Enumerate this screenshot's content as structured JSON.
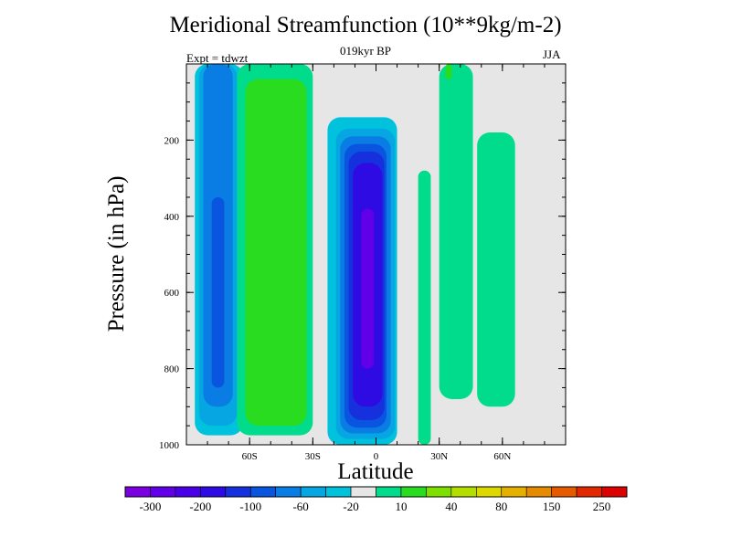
{
  "chart_data": {
    "type": "heatmap",
    "title": "Meridional Streamfunction (10**9kg/m-2)",
    "subtitle": "019kyr BP",
    "annotation_left": "Expt = tdwzt",
    "annotation_right": "JJA",
    "xlabel": "Latitude",
    "ylabel": "Pressure (in hPa)",
    "xlim": [
      -90,
      90
    ],
    "ylim": [
      1000,
      0
    ],
    "x_ticks": [
      {
        "value": -60,
        "label": "60S"
      },
      {
        "value": -30,
        "label": "30S"
      },
      {
        "value": 0,
        "label": "0"
      },
      {
        "value": 30,
        "label": "30N"
      },
      {
        "value": 60,
        "label": "60N"
      }
    ],
    "y_ticks": [
      {
        "value": 200,
        "label": "200"
      },
      {
        "value": 400,
        "label": "400"
      },
      {
        "value": 600,
        "label": "600"
      },
      {
        "value": 800,
        "label": "800"
      },
      {
        "value": 1000,
        "label": "1000"
      }
    ],
    "background_color": "#e6e6e6",
    "colorbar": {
      "colors": [
        "#7a00e0",
        "#6100e8",
        "#4a00e6",
        "#2e0be2",
        "#1530dc",
        "#0a55e0",
        "#0a7de4",
        "#06a6e2",
        "#00c2dc",
        "#e6e6e6",
        "#00dc8c",
        "#2adc20",
        "#7ee000",
        "#b4de00",
        "#dcd800",
        "#e6b000",
        "#e68a00",
        "#e65a00",
        "#e22800",
        "#dc0000"
      ],
      "labels": [
        "-300",
        "-200",
        "-100",
        "-60",
        "-20",
        "10",
        "40",
        "80",
        "150",
        "250"
      ]
    },
    "regions": [
      {
        "name": "southern-cell",
        "level": 0.04,
        "color": "#00c2dc",
        "x": [
          -86,
          -63
        ],
        "p": [
          0,
          975
        ]
      },
      {
        "name": "southern-cell",
        "level": 0.03,
        "color": "#06a6e2",
        "x": [
          -84,
          -66
        ],
        "p": [
          0,
          950
        ]
      },
      {
        "name": "southern-cell",
        "level": 0.02,
        "color": "#0a7de4",
        "x": [
          -82,
          -68
        ],
        "p": [
          0,
          900
        ]
      },
      {
        "name": "southern-cell-core",
        "level": 0.01,
        "color": "#0a55e0",
        "x": [
          -78,
          -72
        ],
        "p": [
          350,
          850
        ]
      },
      {
        "name": "ferrel-cell",
        "level": 0.1,
        "color": "#00dc8c",
        "x": [
          -66,
          -30
        ],
        "p": [
          0,
          975
        ]
      },
      {
        "name": "ferrel-cell",
        "level": 0.2,
        "color": "#2adc20",
        "x": [
          -62,
          -33
        ],
        "p": [
          40,
          950
        ]
      },
      {
        "name": "hadley-cell",
        "level": -0.04,
        "color": "#00c2dc",
        "x": [
          -23,
          10
        ],
        "p": [
          140,
          1000
        ]
      },
      {
        "name": "hadley-cell",
        "level": -0.06,
        "color": "#06a6e2",
        "x": [
          -19,
          9
        ],
        "p": [
          170,
          985
        ]
      },
      {
        "name": "hadley-cell",
        "level": -0.08,
        "color": "#0a7de4",
        "x": [
          -17,
          7
        ],
        "p": [
          190,
          970
        ]
      },
      {
        "name": "hadley-cell",
        "level": -0.1,
        "color": "#0a55e0",
        "x": [
          -15,
          5
        ],
        "p": [
          210,
          955
        ]
      },
      {
        "name": "hadley-cell",
        "level": -0.2,
        "color": "#1530dc",
        "x": [
          -13,
          4
        ],
        "p": [
          230,
          935
        ]
      },
      {
        "name": "hadley-cell",
        "level": -0.3,
        "color": "#2e0be2",
        "x": [
          -11,
          3
        ],
        "p": [
          260,
          900
        ]
      },
      {
        "name": "hadley-cell-core",
        "level": -0.4,
        "color": "#6100e8",
        "x": [
          -7,
          -1
        ],
        "p": [
          380,
          800
        ]
      },
      {
        "name": "northern-cell",
        "level": 0.1,
        "color": "#00dc8c",
        "x": [
          20,
          26
        ],
        "p": [
          280,
          1000
        ]
      },
      {
        "name": "northern-cell",
        "level": 0.1,
        "color": "#00dc8c",
        "x": [
          30,
          46
        ],
        "p": [
          0,
          880
        ]
      },
      {
        "name": "northern-cell",
        "level": 0.1,
        "color": "#00dc8c",
        "x": [
          48,
          66
        ],
        "p": [
          180,
          900
        ]
      },
      {
        "name": "northern-cell-top",
        "level": 0.2,
        "color": "#2adc20",
        "x": [
          33,
          36
        ],
        "p": [
          0,
          40
        ]
      }
    ]
  }
}
